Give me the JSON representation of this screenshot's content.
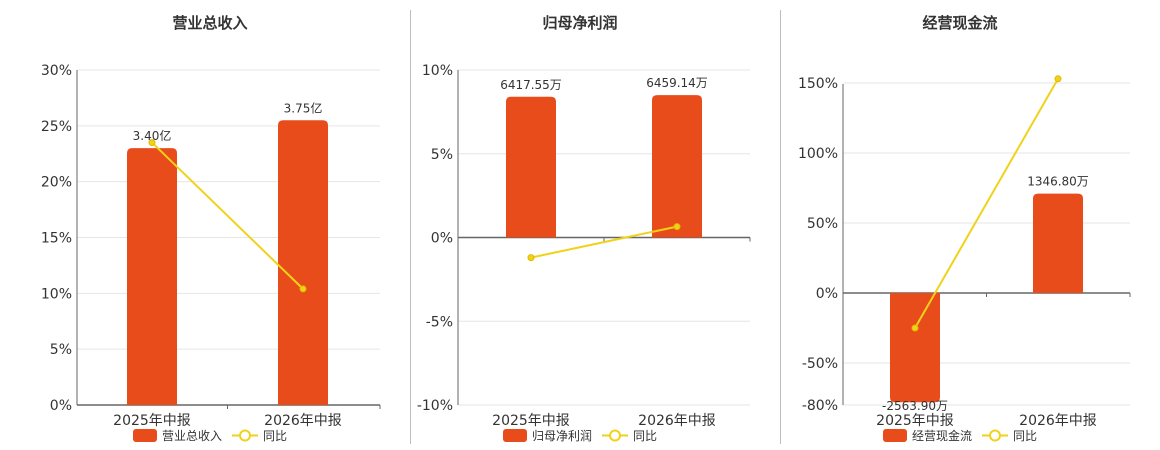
{
  "colors": {
    "bar": "#e84c1a",
    "line": "#f0d21a",
    "axis": "#666666",
    "grid": "#e6e6e6",
    "divider": "#bdbdbd"
  },
  "legend": {
    "line_name": "同比"
  },
  "chart_data": [
    {
      "type": "bar",
      "title": "营业总收入",
      "categories": [
        "2025年中报",
        "2026年中报"
      ],
      "bar_labels": [
        "3.40亿",
        "3.75亿"
      ],
      "bar_values_pct_axis": [
        23,
        25.5
      ],
      "series": [
        {
          "name": "营业总收入",
          "type": "bar",
          "values_display": [
            "3.40亿",
            "3.75亿"
          ]
        },
        {
          "name": "同比",
          "type": "line",
          "values": [
            23.5,
            10.4
          ]
        }
      ],
      "yticks": [
        "30%",
        "25%",
        "20%",
        "15%",
        "10%",
        "5%",
        "0%"
      ],
      "ylim": [
        0,
        30
      ]
    },
    {
      "type": "bar",
      "title": "归母净利润",
      "categories": [
        "2025年中报",
        "2026年中报"
      ],
      "bar_labels": [
        "6417.55万",
        "6459.14万"
      ],
      "bar_values_pct_axis": [
        8.4,
        8.5
      ],
      "series": [
        {
          "name": "归母净利润",
          "type": "bar",
          "values_display": [
            "6417.55万",
            "6459.14万"
          ]
        },
        {
          "name": "同比",
          "type": "line",
          "values": [
            -1.2,
            0.65
          ]
        }
      ],
      "yticks": [
        "10%",
        "5%",
        "0%",
        "-5%",
        "-10%"
      ],
      "ylim": [
        -10,
        10
      ]
    },
    {
      "type": "bar",
      "title": "经营现金流",
      "categories": [
        "2025年中报",
        "2026年中报"
      ],
      "bar_labels": [
        "-2563.90万",
        "1346.80万"
      ],
      "bar_values_pct_axis": [
        -78,
        71
      ],
      "series": [
        {
          "name": "经营现金流",
          "type": "bar",
          "values_display": [
            "-2563.90万",
            "1346.80万"
          ]
        },
        {
          "name": "同比",
          "type": "line",
          "values": [
            -25,
            153
          ]
        }
      ],
      "yticks": [
        "150%",
        "100%",
        "50%",
        "0%",
        "-50%",
        "-80%"
      ],
      "ytick_values": [
        150,
        100,
        50,
        0,
        -50,
        -80
      ],
      "ylim": [
        -80,
        160
      ]
    }
  ]
}
